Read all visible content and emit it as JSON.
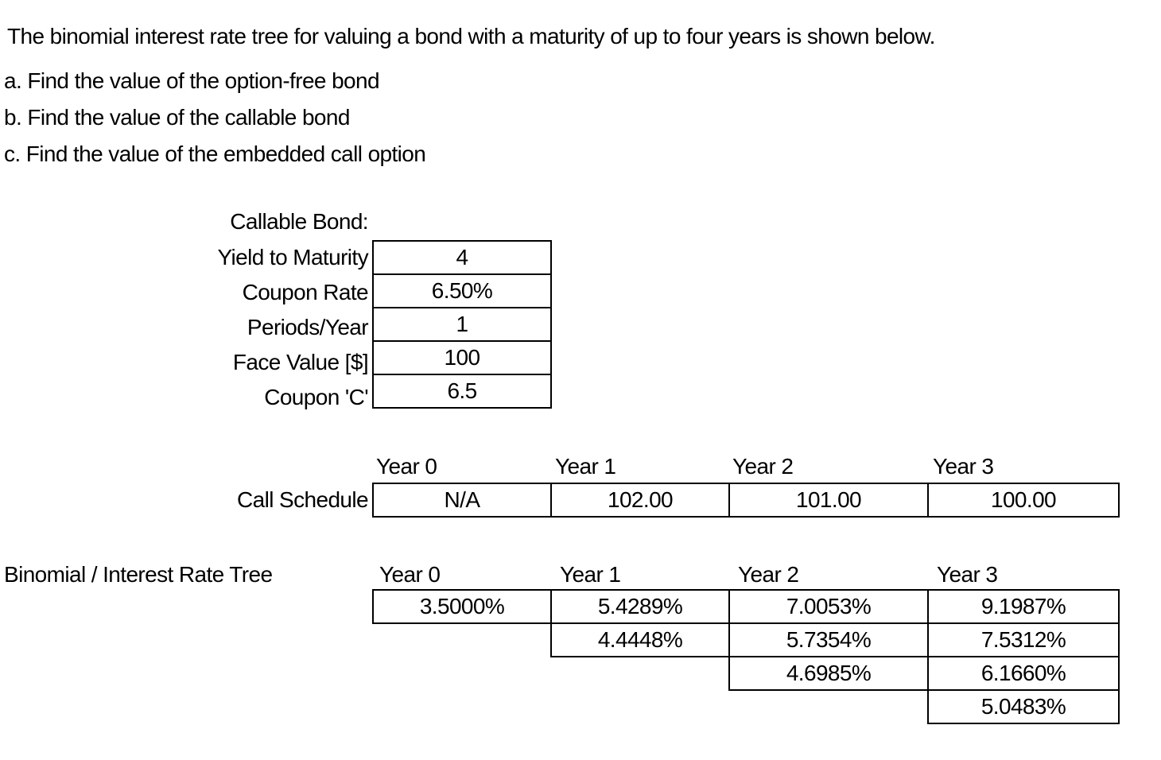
{
  "title": "The binomial interest rate tree for valuing a bond with a maturity of up to four years is shown below.",
  "questions": [
    "a. Find the value of the option-free bond",
    "b. Find the value of the callable bond",
    "c. Find the value of the embedded call option"
  ],
  "callable_bond": {
    "heading": "Callable Bond:",
    "params": [
      {
        "label": "Yield to Maturity",
        "value": "4"
      },
      {
        "label": "Coupon Rate",
        "value": "6.50%"
      },
      {
        "label": "Periods/Year",
        "value": "1"
      },
      {
        "label": "Face Value [$]",
        "value": "100"
      },
      {
        "label": "Coupon 'C'",
        "value": "6.5"
      }
    ]
  },
  "call_schedule": {
    "label": "Call Schedule",
    "year_headers": [
      "Year 0",
      "Year 1",
      "Year 2",
      "Year 3"
    ],
    "values": [
      "N/A",
      "102.00",
      "101.00",
      "100.00"
    ]
  },
  "rate_tree": {
    "label": "Binomial / Interest Rate Tree",
    "year_headers": [
      "Year 0",
      "Year 1",
      "Year 2",
      "Year 3"
    ],
    "rows": [
      [
        "3.5000%",
        "5.4289%",
        "7.0053%",
        "9.1987%"
      ],
      [
        null,
        "4.4448%",
        "5.7354%",
        "7.5312%"
      ],
      [
        null,
        null,
        "4.6985%",
        "6.1660%"
      ],
      [
        null,
        null,
        null,
        "5.0483%"
      ]
    ]
  },
  "colors": {
    "background": "#ffffff",
    "text": "#000000",
    "border": "#000000"
  }
}
